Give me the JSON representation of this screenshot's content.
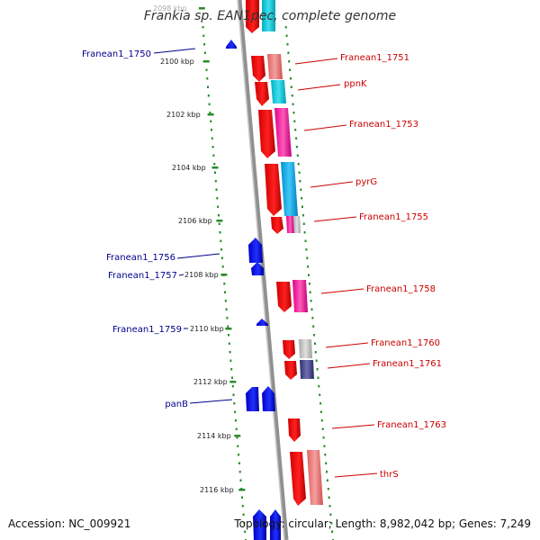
{
  "title": "Frankia sp. EAN1pec, complete genome",
  "footer": {
    "accession": "Accession: NC_009921",
    "summary": "Topology: circular; Length: 8,982,042 bp; Genes: 7,249"
  },
  "colors": {
    "background": "#ffffff",
    "backbone": "#909090",
    "scale_dots": "#2a8a2a",
    "forward_label": "#cc0000",
    "reverse_label": "#00008b",
    "gene_forward": "#ff0000",
    "gene_reverse": "#0000ff"
  },
  "scale_ticks": [
    "2098 kbp",
    "2100 kbp",
    "2102 kbp",
    "2104 kbp",
    "2106 kbp",
    "2108 kbp",
    "2110 kbp",
    "2112 kbp",
    "2114 kbp",
    "2116 kbp"
  ],
  "forward_labels": [
    "Franean1_1751",
    "ppnK",
    "Franean1_1753",
    "pyrG",
    "Franean1_1755",
    "Franean1_1758",
    "Franean1_1760",
    "Franean1_1761",
    "Franean1_1763",
    "thrS"
  ],
  "reverse_labels": [
    "Franean1_1750",
    "Franean1_1756",
    "Franean1_1757",
    "Franean1_1759",
    "panB"
  ]
}
